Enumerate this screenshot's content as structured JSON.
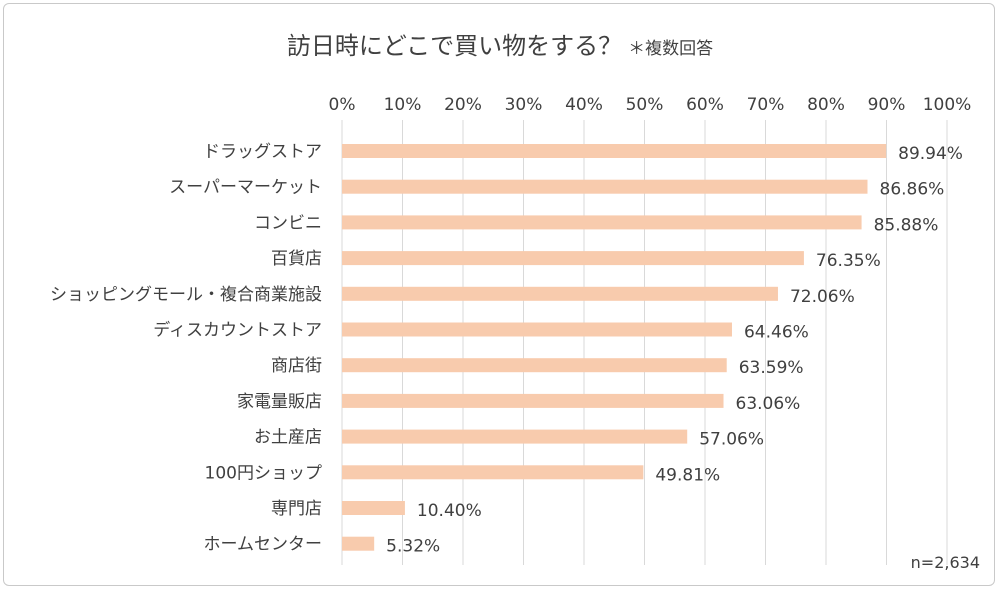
{
  "chart_data": {
    "type": "bar",
    "orientation": "horizontal",
    "title": "訪日時にどこで買い物をする？",
    "subtitle": "＊複数回答",
    "note": "n=2,634",
    "categories": [
      "ドラッグストア",
      "スーパーマーケット",
      "コンビニ",
      "百貨店",
      "ショッピングモール・複合商業施設",
      "ディスカウントストア",
      "商店街",
      "家電量販店",
      "お土産店",
      "100円ショップ",
      "専門店",
      "ホームセンター"
    ],
    "values": [
      89.94,
      86.86,
      85.88,
      76.35,
      72.06,
      64.46,
      63.59,
      63.06,
      57.06,
      49.81,
      10.4,
      5.32
    ],
    "value_labels": [
      "89.94%",
      "86.86%",
      "85.88%",
      "76.35%",
      "72.06%",
      "64.46%",
      "63.59%",
      "63.06%",
      "57.06%",
      "49.81%",
      "10.40%",
      "5.32%"
    ],
    "x_ticks": [
      "0%",
      "10%",
      "20%",
      "30%",
      "40%",
      "50%",
      "60%",
      "70%",
      "80%",
      "90%",
      "100%"
    ],
    "xlim": [
      0,
      100
    ],
    "xaxis_position": "top",
    "grid": true,
    "bar_color": "#f8cbad",
    "grid_color": "#d9d9d9"
  }
}
